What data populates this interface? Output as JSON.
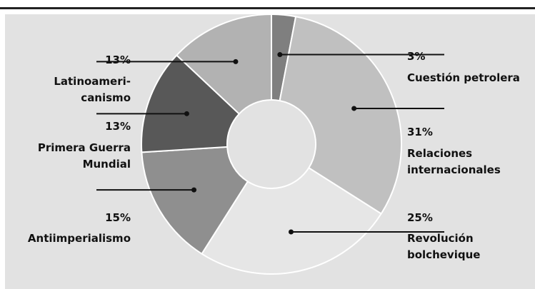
{
  "chart_data": {
    "type": "pie",
    "style": "donut",
    "slices": [
      {
        "name_lines": [
          "Cuestión petrolera"
        ],
        "value": 3,
        "label": "3%",
        "color": "#7f7f7f"
      },
      {
        "name_lines": [
          "Relaciones",
          "internacionales"
        ],
        "value": 31,
        "label": "31%",
        "color": "#c0c0c0"
      },
      {
        "name_lines": [
          "Revolución",
          "bolchevique"
        ],
        "value": 25,
        "label": "25%",
        "color": "#e6e6e6"
      },
      {
        "name_lines": [
          "Antiimperialismo"
        ],
        "value": 15,
        "label": "15%",
        "color": "#8f8f8f"
      },
      {
        "name_lines": [
          "Primera Guerra",
          "Mundial"
        ],
        "value": 13,
        "label": "13%",
        "color": "#585858"
      },
      {
        "name_lines": [
          "Latinoameri-",
          "canismo"
        ],
        "value": 13,
        "label": "13%",
        "color": "#b2b2b2"
      }
    ],
    "title": "",
    "legend": "none",
    "colors": {
      "panel_background": "#e2e2e2",
      "slice_border": "#ffffff",
      "leader_line": "#111111",
      "top_rule": "#222222"
    }
  }
}
